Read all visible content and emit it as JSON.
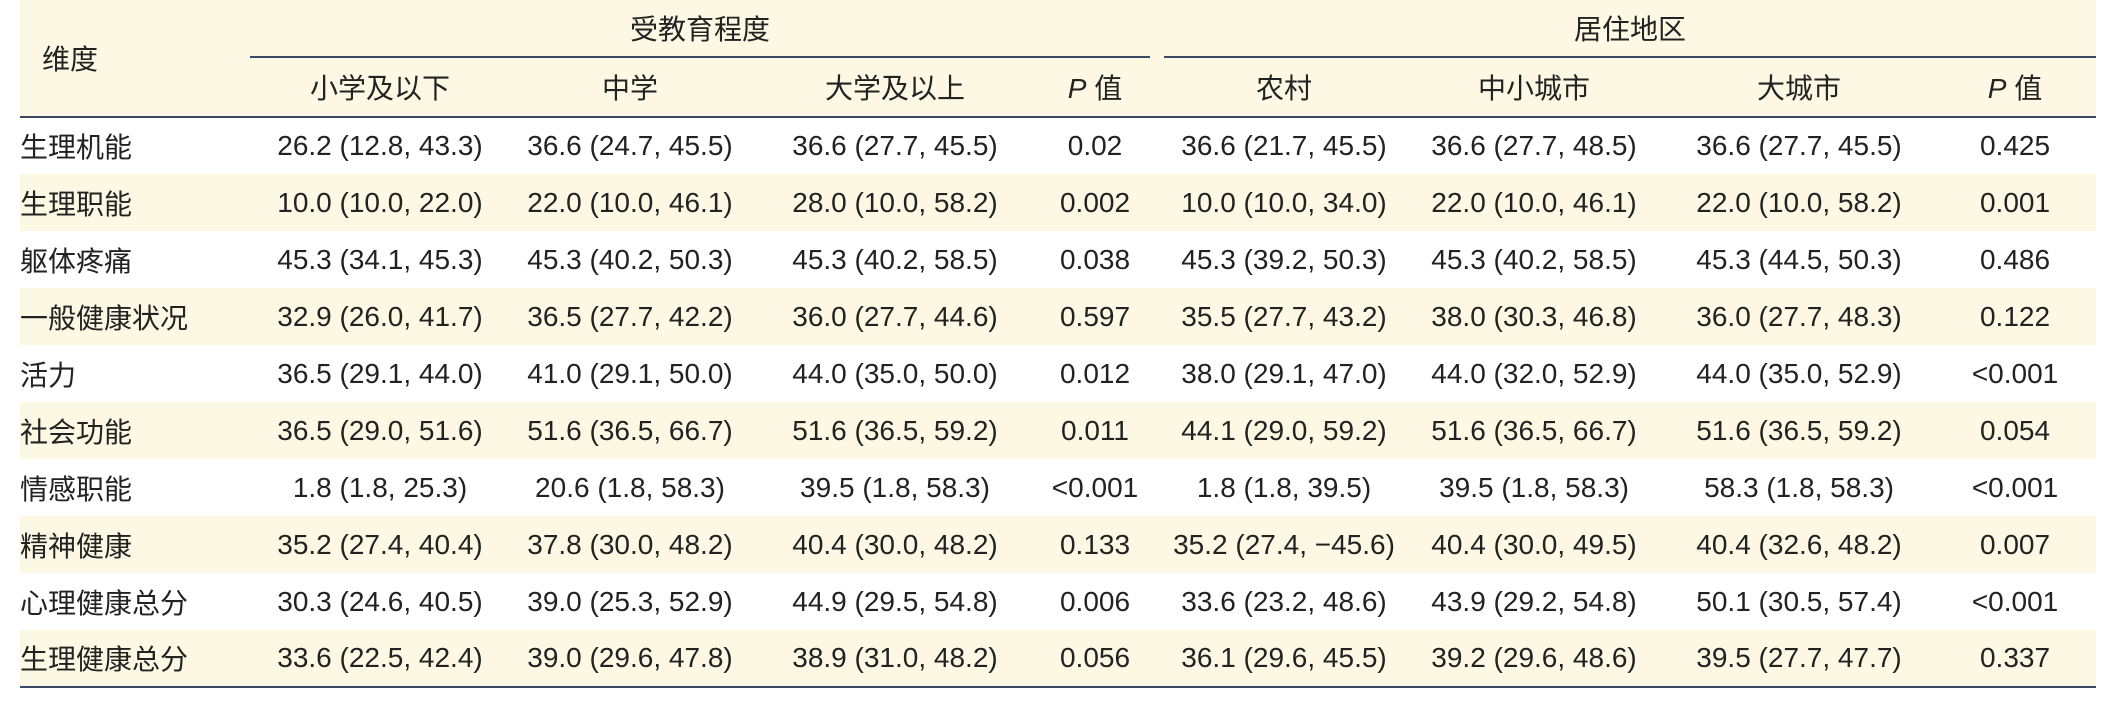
{
  "table": {
    "dim_header": "维度",
    "group1": "受教育程度",
    "group2": "居住地区",
    "p_symbol": "P",
    "p_suffix": " 值",
    "subheads": {
      "edu1": "小学及以下",
      "edu2": "中学",
      "edu3": "大学及以上",
      "res1": "农村",
      "res2": "中小城市",
      "res3": "大城市"
    },
    "rows": [
      {
        "name": "生理机能",
        "e1": "26.2 (12.8, 43.3)",
        "e2": "36.6 (24.7, 45.5)",
        "e3": "36.6 (27.7, 45.5)",
        "ep": "0.02",
        "r1": "36.6 (21.7, 45.5)",
        "r2": "36.6 (27.7, 48.5)",
        "r3": "36.6 (27.7, 45.5)",
        "rp": "0.425"
      },
      {
        "name": "生理职能",
        "e1": "10.0 (10.0, 22.0)",
        "e2": "22.0 (10.0, 46.1)",
        "e3": "28.0 (10.0, 58.2)",
        "ep": "0.002",
        "r1": "10.0 (10.0, 34.0)",
        "r2": "22.0 (10.0, 46.1)",
        "r3": "22.0 (10.0, 58.2)",
        "rp": "0.001"
      },
      {
        "name": "躯体疼痛",
        "e1": "45.3 (34.1, 45.3)",
        "e2": "45.3 (40.2, 50.3)",
        "e3": "45.3 (40.2, 58.5)",
        "ep": "0.038",
        "r1": "45.3 (39.2, 50.3)",
        "r2": "45.3 (40.2, 58.5)",
        "r3": "45.3 (44.5, 50.3)",
        "rp": "0.486"
      },
      {
        "name": "一般健康状况",
        "e1": "32.9 (26.0, 41.7)",
        "e2": "36.5 (27.7, 42.2)",
        "e3": "36.0 (27.7, 44.6)",
        "ep": "0.597",
        "r1": "35.5 (27.7, 43.2)",
        "r2": "38.0 (30.3, 46.8)",
        "r3": "36.0 (27.7, 48.3)",
        "rp": "0.122"
      },
      {
        "name": "活力",
        "e1": "36.5 (29.1, 44.0)",
        "e2": "41.0 (29.1, 50.0)",
        "e3": "44.0 (35.0, 50.0)",
        "ep": "0.012",
        "r1": "38.0 (29.1, 47.0)",
        "r2": "44.0 (32.0, 52.9)",
        "r3": "44.0 (35.0, 52.9)",
        "rp": "<0.001"
      },
      {
        "name": "社会功能",
        "e1": "36.5 (29.0, 51.6)",
        "e2": "51.6 (36.5, 66.7)",
        "e3": "51.6 (36.5, 59.2)",
        "ep": "0.011",
        "r1": "44.1 (29.0, 59.2)",
        "r2": "51.6 (36.5, 66.7)",
        "r3": "51.6 (36.5, 59.2)",
        "rp": "0.054"
      },
      {
        "name": "情感职能",
        "e1": "1.8 (1.8, 25.3)",
        "e2": "20.6 (1.8, 58.3)",
        "e3": "39.5 (1.8, 58.3)",
        "ep": "<0.001",
        "r1": "1.8 (1.8, 39.5)",
        "r2": "39.5 (1.8, 58.3)",
        "r3": "58.3 (1.8, 58.3)",
        "rp": "<0.001"
      },
      {
        "name": "精神健康",
        "e1": "35.2 (27.4, 40.4)",
        "e2": "37.8 (30.0, 48.2)",
        "e3": "40.4 (30.0, 48.2)",
        "ep": "0.133",
        "r1": "35.2 (27.4, −45.6)",
        "r2": "40.4 (30.0, 49.5)",
        "r3": "40.4 (32.6, 48.2)",
        "rp": "0.007"
      },
      {
        "name": "心理健康总分",
        "e1": "30.3 (24.6, 40.5)",
        "e2": "39.0 (25.3, 52.9)",
        "e3": "44.9 (29.5, 54.8)",
        "ep": "0.006",
        "r1": "33.6 (23.2, 48.6)",
        "r2": "43.9 (29.2, 54.8)",
        "r3": "50.1 (30.5, 57.4)",
        "rp": "<0.001"
      },
      {
        "name": "生理健康总分",
        "e1": "33.6 (22.5, 42.4)",
        "e2": "39.0 (29.6, 47.8)",
        "e3": "38.9 (31.0, 48.2)",
        "ep": "0.056",
        "r1": "36.1 (29.6, 45.5)",
        "r2": "39.2 (29.6, 48.6)",
        "r3": "39.5 (27.7, 47.7)",
        "rp": "0.337"
      }
    ]
  }
}
